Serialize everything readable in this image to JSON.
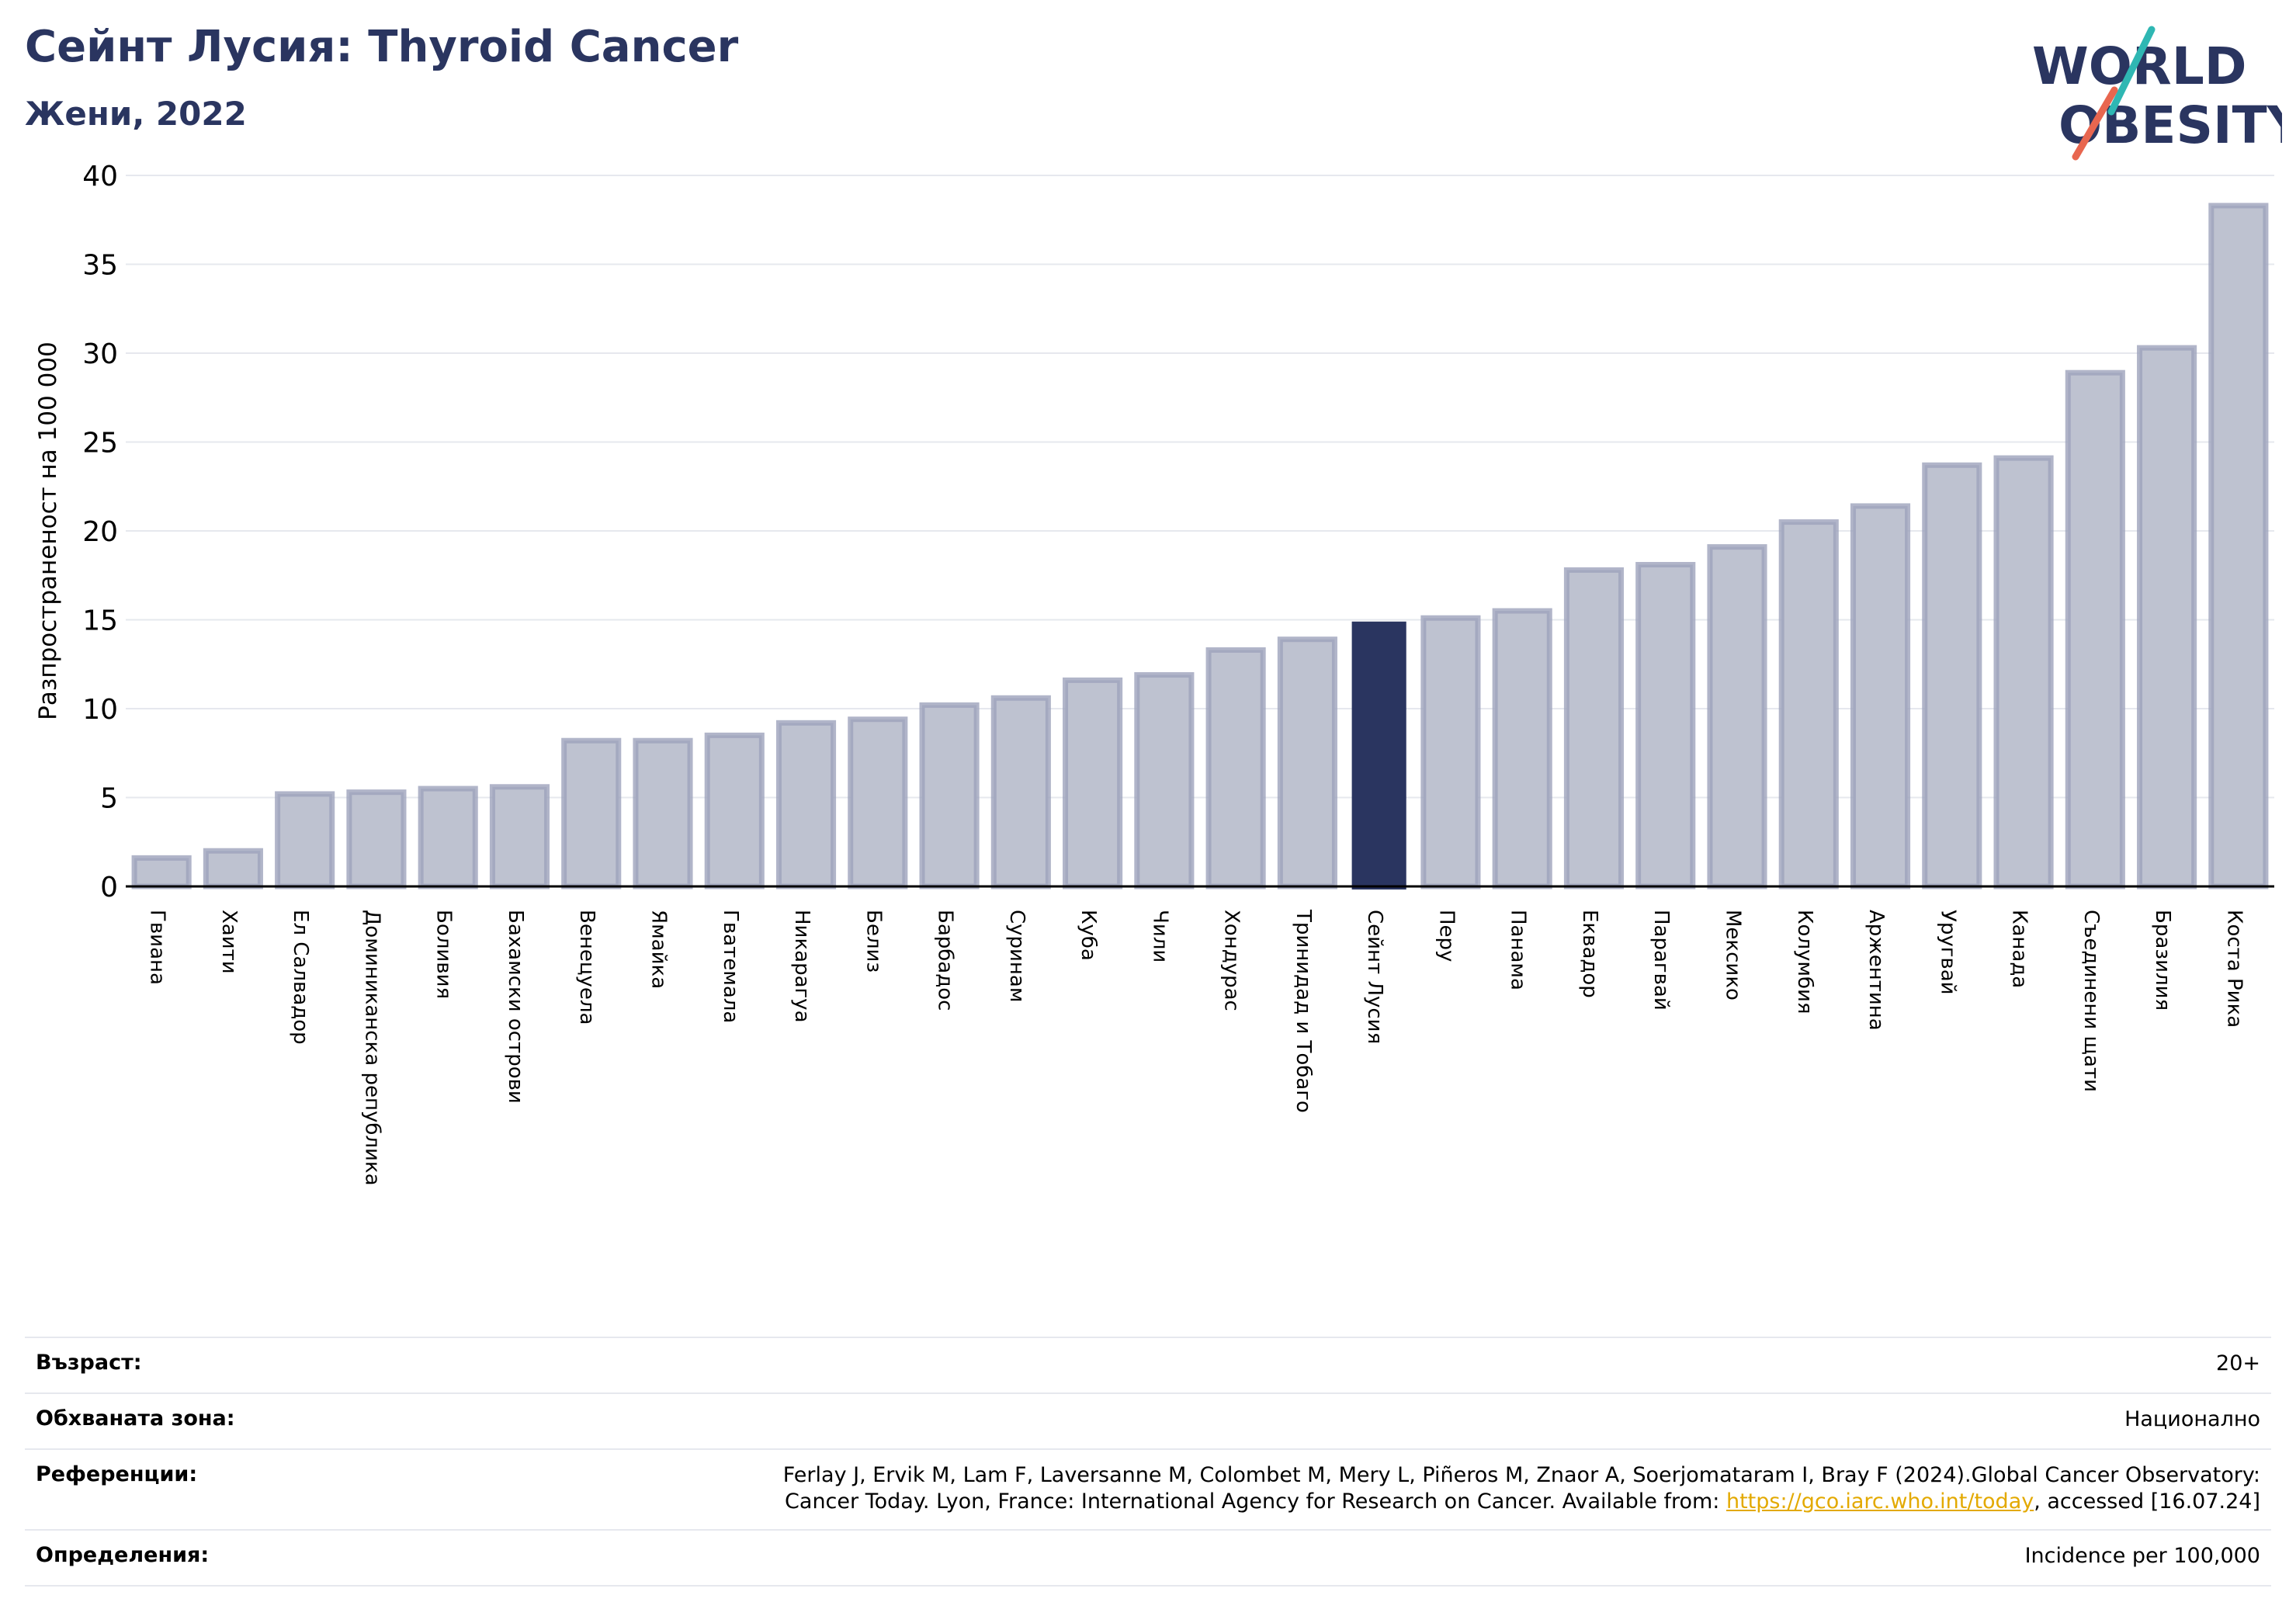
{
  "header": {
    "title": "Сейнт Лусия: Thyroid Cancer",
    "subtitle": "Жени, 2022"
  },
  "logo": {
    "line1": "WORLD",
    "line2": "OBESITY",
    "colors": {
      "text": "#2a3560",
      "slash_top": "#2fb7b3",
      "slash_bottom": "#e8664f"
    }
  },
  "chart_data": {
    "type": "bar",
    "ylabel": "Разпространеност  на 100 000",
    "ylim": [
      0,
      40
    ],
    "yticks": [
      0,
      5,
      10,
      15,
      20,
      25,
      30,
      35,
      40
    ],
    "grid": true,
    "highlight": "Сейнт Лусия",
    "colors": {
      "bar": "#bec2d0",
      "bar_edge": "#9da3bb",
      "highlight": "#2a3560",
      "grid": "#e6e8ee",
      "axis": "#000000"
    },
    "categories": [
      "Гвиана",
      "Хаити",
      "Ел Салвадор",
      "Доминиканска република",
      "Боливия",
      "Бахамски острови",
      "Венецуела",
      "Ямайка",
      "Гватемала",
      "Никарагуа",
      "Белиз",
      "Барбадос",
      "Суринам",
      "Куба",
      "Чили",
      "Хондурас",
      "Тринидад и Тобаго",
      "Сейнт Лусия",
      "Перу",
      "Панама",
      "Еквадор",
      "Парагвай",
      "Мексико",
      "Колумбия",
      "Аржентина",
      "Уругвай",
      "Канада",
      "Съединени щати",
      "Бразилия",
      "Коста Рика"
    ],
    "values": [
      1.6,
      2.0,
      5.2,
      5.3,
      5.5,
      5.6,
      8.2,
      8.2,
      8.5,
      9.2,
      9.4,
      10.2,
      10.6,
      11.6,
      11.9,
      13.3,
      13.9,
      14.9,
      15.1,
      15.5,
      17.8,
      18.1,
      19.1,
      20.5,
      21.4,
      23.7,
      24.1,
      28.9,
      30.3,
      38.3
    ]
  },
  "info": [
    {
      "label": "Възраст:",
      "value": "20+"
    },
    {
      "label": "Обхваната зона:",
      "value": "Национално"
    },
    {
      "label": "Референции:",
      "value_line1": "Ferlay J, Ervik M, Lam F, Laversanne M, Colombet M, Mery L, Piñeros M, Znaor A, Soerjomataram I, Bray F (2024).Global Cancer Observatory:",
      "value_line2_pre": "Cancer Today. Lyon, France: International Agency for Research on Cancer. Available from: ",
      "link": "https://gco.iarc.who.int/today",
      "value_line2_post": ", accessed [16.07.24]"
    },
    {
      "label": "Определения:",
      "value": "Incidence per 100,000"
    }
  ]
}
